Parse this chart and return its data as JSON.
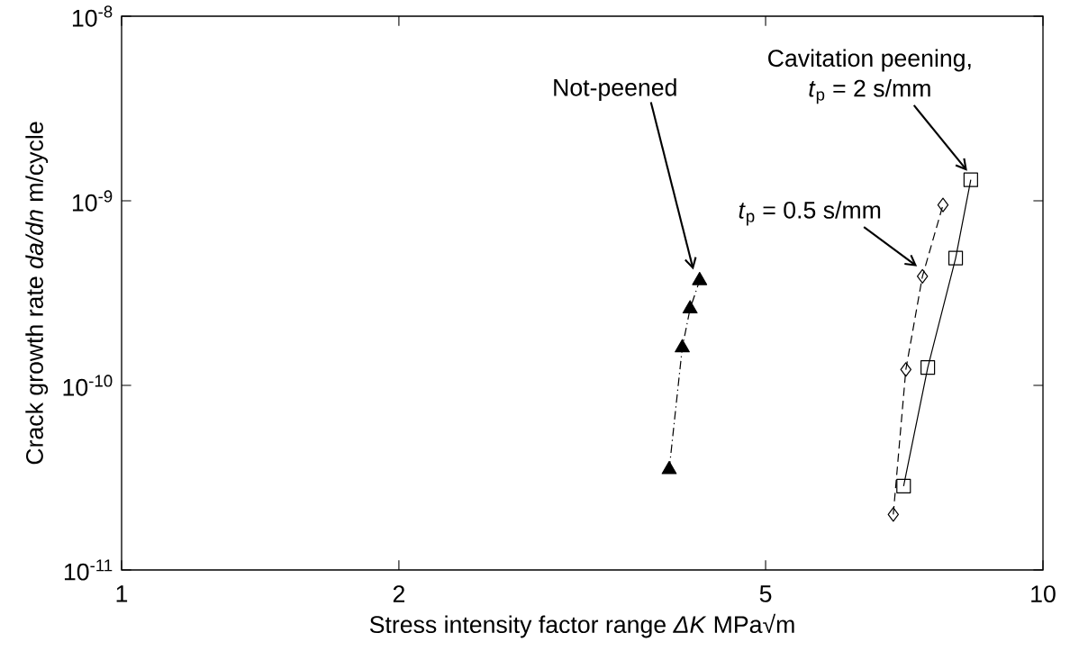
{
  "chart_data": {
    "type": "line",
    "xlabel": "Stress intensity factor range  *ΔK*  MPa√m",
    "ylabel": "Crack growth rate  *da/dn*  m/cycle",
    "log": "xy",
    "grid": false,
    "xlim": [
      1,
      10
    ],
    "ylim": [
      1e-11,
      1e-08
    ],
    "xticks": [
      1,
      2,
      5,
      10
    ],
    "yticks": [
      {
        "value": 1e-11,
        "label": "10$^{-11}$"
      },
      {
        "value": 1e-10,
        "label": "10$^{-10}$"
      },
      {
        "value": 1e-09,
        "label": "10$^{-9}$"
      },
      {
        "value": 1e-08,
        "label": "10$^{-8}$"
      }
    ],
    "series": [
      {
        "color": "#000000",
        "marker": "triangle",
        "line_style": "dashdot",
        "x": [
          3.93,
          4.06,
          4.14,
          4.24
        ],
        "values": [
          3.5e-11,
          1.6e-10,
          2.6e-10,
          3.7e-10
        ]
      },
      {
        "color": "#000000",
        "marker": "diamond",
        "line_style": "dashed",
        "x": [
          6.88,
          7.1,
          7.4,
          7.79
        ],
        "values": [
          2e-11,
          1.22e-10,
          3.9e-10,
          9.5e-10
        ]
      },
      {
        "color": "#000000",
        "marker": "square",
        "line_style": "solid",
        "x": [
          7.06,
          7.5,
          8.04,
          8.35
        ],
        "values": [
          2.85e-11,
          1.25e-10,
          4.9e-10,
          1.3e-09
        ]
      }
    ],
    "annotations": [
      "Not-peened",
      "*t*$_{p}$ = 0.5 s/mm",
      "Cavitation peening,",
      "*t*$_{p}$ = 2 s/mm"
    ]
  }
}
